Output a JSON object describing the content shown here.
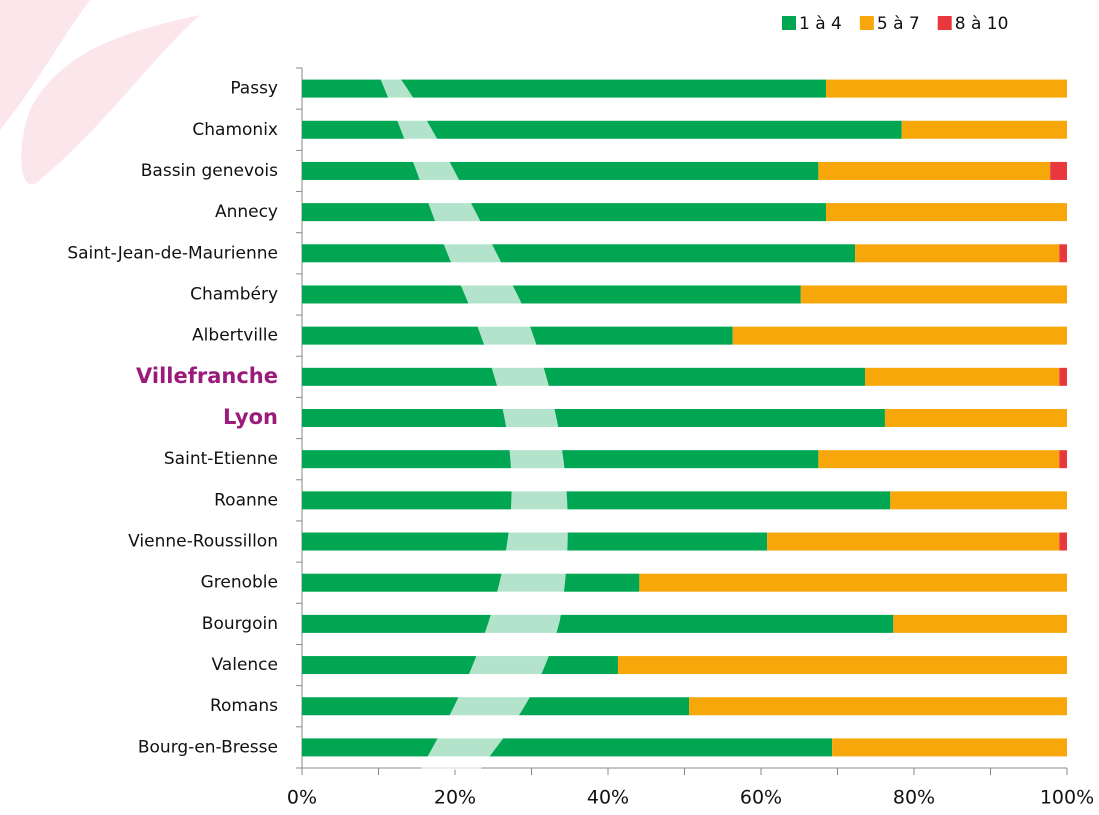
{
  "chart_data": {
    "type": "stacked-barh",
    "categories": [
      "Passy",
      "Chamonix",
      "Bassin genevois",
      "Annecy",
      "Saint-Jean-de-Maurienne",
      "Chambéry",
      "Albertville",
      "Villefranche",
      "Lyon",
      "Saint-Etienne",
      "Roanne",
      "Vienne-Roussillon",
      "Grenoble",
      "Bourgoin",
      "Valence",
      "Romans",
      "Bourg-en-Bresse"
    ],
    "series": [
      {
        "name": "1 à 4",
        "color": "#00a651",
        "values": [
          68.5,
          78.4,
          67.5,
          68.5,
          72.3,
          65.2,
          56.3,
          73.6,
          76.2,
          67.5,
          76.9,
          60.8,
          44.1,
          77.3,
          41.3,
          50.6,
          69.3
        ]
      },
      {
        "name": "5 à 7",
        "color": "#f7a70a",
        "values": [
          31.5,
          21.6,
          30.3,
          31.5,
          26.7,
          34.8,
          43.7,
          25.4,
          23.8,
          31.5,
          23.1,
          38.2,
          55.9,
          22.7,
          58.7,
          49.4,
          30.7
        ]
      },
      {
        "name": "8 à 10",
        "color": "#e8383d",
        "values": [
          0,
          0,
          2.2,
          0,
          1.0,
          0,
          0,
          1.0,
          0,
          1.0,
          0,
          1.0,
          0,
          0,
          0,
          0,
          0
        ]
      }
    ],
    "xlim": [
      0,
      100
    ],
    "xticks": [
      {
        "value": 0,
        "label": "0%"
      },
      {
        "value": 20,
        "label": "20%"
      },
      {
        "value": 40,
        "label": "40%"
      },
      {
        "value": 60,
        "label": "60%"
      },
      {
        "value": 80,
        "label": "80%"
      },
      {
        "value": 100,
        "label": "100%"
      }
    ],
    "xminorticks": [
      10,
      30,
      50,
      70,
      90
    ],
    "highlight_indices": [
      7,
      8
    ],
    "highlight_color": "#9b1b7a",
    "legend": "top-right"
  }
}
